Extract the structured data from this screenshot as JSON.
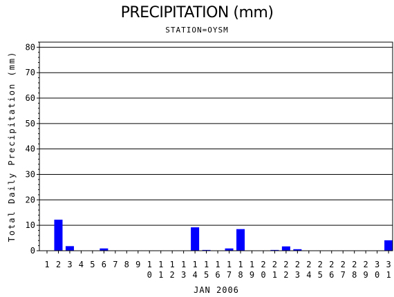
{
  "chart_data": {
    "type": "bar",
    "title": "PRECIPITATION (mm)",
    "subtitle": "STATION=OYSM",
    "xlabel": "JAN 2006",
    "ylabel": "Total Daily Precipitation (mm)",
    "ylim": [
      0,
      82
    ],
    "yticks": [
      0,
      10,
      20,
      30,
      40,
      50,
      60,
      70,
      80
    ],
    "grid": true,
    "bar_color": "#0000ff",
    "categories": [
      "1",
      "2",
      "3",
      "4",
      "5",
      "6",
      "7",
      "8",
      "9",
      "10",
      "11",
      "12",
      "13",
      "14",
      "15",
      "16",
      "17",
      "18",
      "19",
      "20",
      "21",
      "22",
      "23",
      "24",
      "25",
      "26",
      "27",
      "28",
      "29",
      "30",
      "31"
    ],
    "values": [
      0,
      12.2,
      1.8,
      0,
      0,
      0.9,
      0,
      0,
      0,
      0,
      0,
      0,
      0,
      9.2,
      0.3,
      0,
      0.9,
      8.5,
      0,
      0,
      0.3,
      1.7,
      0.6,
      0,
      0,
      0,
      0,
      0,
      0,
      0,
      4.1
    ]
  }
}
